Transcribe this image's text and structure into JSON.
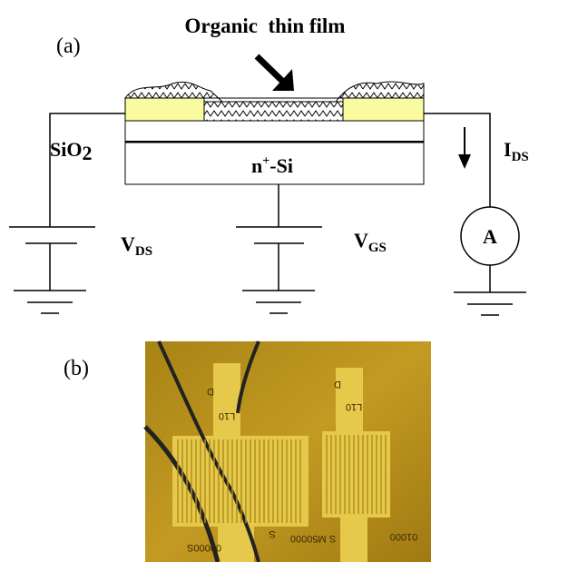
{
  "labels": {
    "title": "Organic  thin film",
    "panel_a": "(a)",
    "panel_b": "(b)",
    "sio2": {
      "base": "SiO",
      "sub": "2"
    },
    "substrate": {
      "base": "n",
      "sup": "+",
      "rest": "-Si"
    },
    "vds": {
      "base": "V",
      "sub": "DS"
    },
    "vgs": {
      "base": "V",
      "sub": "GS"
    },
    "ids": {
      "base": "I",
      "sub": "DS"
    },
    "ammeter": "A"
  },
  "photo_labels": [
    "L10",
    "D",
    "L10",
    "D",
    "S",
    "S M50000",
    "00000S",
    "01000"
  ]
}
